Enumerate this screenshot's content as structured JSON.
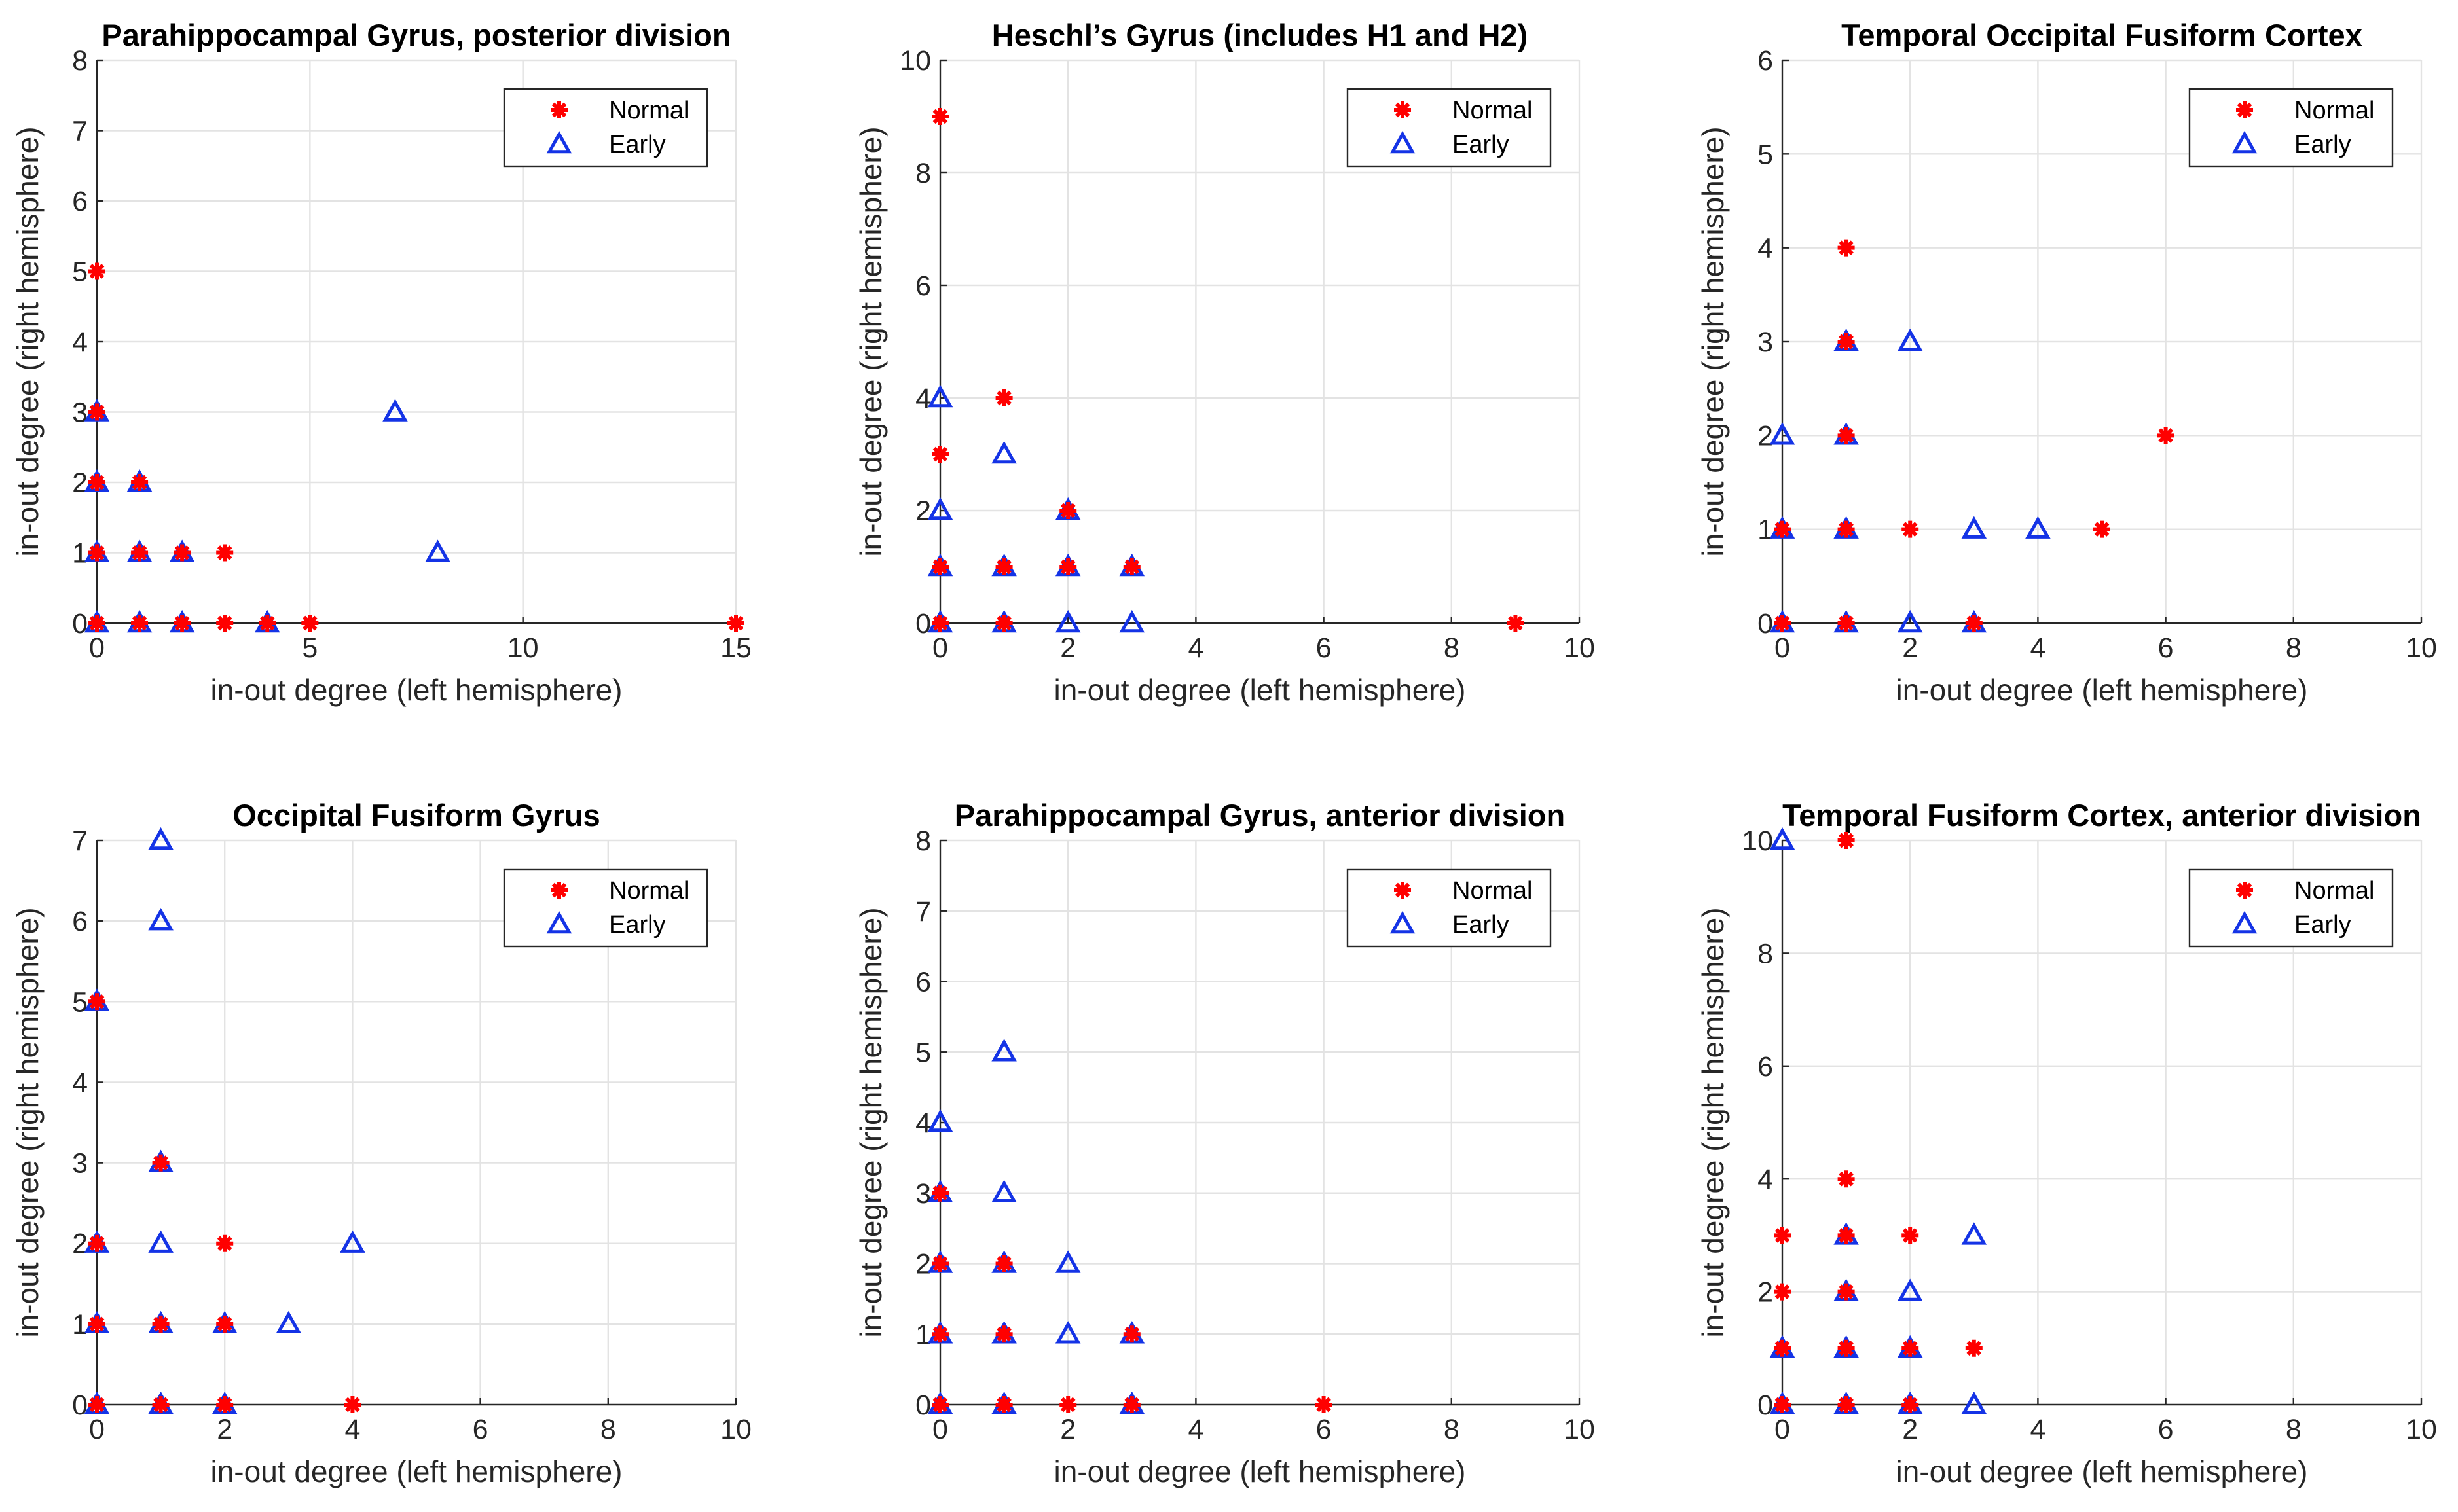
{
  "colors": {
    "normal": "#ff0000",
    "early": "#1433e6",
    "grid": "#e3e3e3",
    "axis": "#262626"
  },
  "chart_data": [
    {
      "type": "scatter",
      "title": "Parahippocampal Gyrus, posterior division",
      "xlabel": "in-out degree (left hemisphere)",
      "ylabel": "in-out degree (right hemisphere)",
      "xlim": [
        0,
        15
      ],
      "ylim": [
        0,
        8
      ],
      "xticks": [
        0,
        5,
        10,
        15
      ],
      "yticks": [
        0,
        1,
        2,
        3,
        4,
        5,
        6,
        7,
        8
      ],
      "grid": true,
      "legend": "top-right",
      "series": [
        {
          "name": "Normal",
          "marker": "asterisk",
          "points": [
            [
              0,
              5
            ],
            [
              0,
              3
            ],
            [
              0,
              2
            ],
            [
              0,
              1
            ],
            [
              0,
              0
            ],
            [
              1,
              2
            ],
            [
              1,
              1
            ],
            [
              1,
              0
            ],
            [
              2,
              1
            ],
            [
              2,
              0
            ],
            [
              3,
              1
            ],
            [
              3,
              0
            ],
            [
              4,
              0
            ],
            [
              5,
              0
            ],
            [
              15,
              0
            ]
          ]
        },
        {
          "name": "Early",
          "marker": "triangle",
          "points": [
            [
              0,
              3
            ],
            [
              0,
              2
            ],
            [
              0,
              1
            ],
            [
              0,
              0
            ],
            [
              1,
              2
            ],
            [
              1,
              1
            ],
            [
              1,
              0
            ],
            [
              2,
              1
            ],
            [
              2,
              0
            ],
            [
              4,
              0
            ],
            [
              7,
              3
            ],
            [
              8,
              1
            ]
          ]
        }
      ]
    },
    {
      "type": "scatter",
      "title": "Heschl’s Gyrus (includes H1 and H2)",
      "xlabel": "in-out degree (left hemisphere)",
      "ylabel": "in-out degree (right hemisphere)",
      "xlim": [
        0,
        10
      ],
      "ylim": [
        0,
        10
      ],
      "xticks": [
        0,
        2,
        4,
        6,
        8,
        10
      ],
      "yticks": [
        0,
        2,
        4,
        6,
        8,
        10
      ],
      "grid": true,
      "legend": "top-right",
      "series": [
        {
          "name": "Normal",
          "marker": "asterisk",
          "points": [
            [
              0,
              9
            ],
            [
              0,
              3
            ],
            [
              0,
              1
            ],
            [
              0,
              0
            ],
            [
              1,
              4
            ],
            [
              1,
              1
            ],
            [
              1,
              0
            ],
            [
              2,
              2
            ],
            [
              2,
              1
            ],
            [
              3,
              1
            ],
            [
              9,
              0
            ]
          ]
        },
        {
          "name": "Early",
          "marker": "triangle",
          "points": [
            [
              0,
              4
            ],
            [
              0,
              2
            ],
            [
              0,
              1
            ],
            [
              0,
              0
            ],
            [
              1,
              3
            ],
            [
              1,
              1
            ],
            [
              1,
              0
            ],
            [
              2,
              2
            ],
            [
              2,
              1
            ],
            [
              2,
              0
            ],
            [
              3,
              1
            ],
            [
              3,
              0
            ]
          ]
        }
      ]
    },
    {
      "type": "scatter",
      "title": "Temporal Occipital Fusiform Cortex",
      "xlabel": "in-out degree (left hemisphere)",
      "ylabel": "in-out degree (right hemisphere)",
      "xlim": [
        0,
        10
      ],
      "ylim": [
        0,
        6
      ],
      "xticks": [
        0,
        2,
        4,
        6,
        8,
        10
      ],
      "yticks": [
        0,
        1,
        2,
        3,
        4,
        5,
        6
      ],
      "grid": true,
      "legend": "top-right",
      "series": [
        {
          "name": "Normal",
          "marker": "asterisk",
          "points": [
            [
              0,
              1
            ],
            [
              0,
              0
            ],
            [
              1,
              4
            ],
            [
              1,
              3
            ],
            [
              1,
              2
            ],
            [
              1,
              1
            ],
            [
              1,
              0
            ],
            [
              2,
              1
            ],
            [
              3,
              0
            ],
            [
              5,
              1
            ],
            [
              6,
              2
            ]
          ]
        },
        {
          "name": "Early",
          "marker": "triangle",
          "points": [
            [
              0,
              2
            ],
            [
              0,
              1
            ],
            [
              0,
              0
            ],
            [
              1,
              3
            ],
            [
              1,
              2
            ],
            [
              1,
              1
            ],
            [
              1,
              0
            ],
            [
              2,
              3
            ],
            [
              2,
              0
            ],
            [
              3,
              1
            ],
            [
              3,
              0
            ],
            [
              4,
              1
            ]
          ]
        }
      ]
    },
    {
      "type": "scatter",
      "title": "Occipital Fusiform Gyrus",
      "xlabel": "in-out degree (left hemisphere)",
      "ylabel": "in-out degree (right hemisphere)",
      "xlim": [
        0,
        10
      ],
      "ylim": [
        0,
        7
      ],
      "xticks": [
        0,
        2,
        4,
        6,
        8,
        10
      ],
      "yticks": [
        0,
        1,
        2,
        3,
        4,
        5,
        6,
        7
      ],
      "grid": true,
      "legend": "top-right",
      "series": [
        {
          "name": "Normal",
          "marker": "asterisk",
          "points": [
            [
              0,
              5
            ],
            [
              0,
              2
            ],
            [
              0,
              1
            ],
            [
              0,
              0
            ],
            [
              1,
              3
            ],
            [
              1,
              1
            ],
            [
              1,
              0
            ],
            [
              2,
              2
            ],
            [
              2,
              1
            ],
            [
              2,
              0
            ],
            [
              4,
              0
            ]
          ]
        },
        {
          "name": "Early",
          "marker": "triangle",
          "points": [
            [
              0,
              5
            ],
            [
              0,
              2
            ],
            [
              0,
              1
            ],
            [
              0,
              0
            ],
            [
              1,
              7
            ],
            [
              1,
              6
            ],
            [
              1,
              3
            ],
            [
              1,
              2
            ],
            [
              1,
              1
            ],
            [
              1,
              0
            ],
            [
              2,
              1
            ],
            [
              2,
              0
            ],
            [
              3,
              1
            ],
            [
              4,
              2
            ]
          ]
        }
      ]
    },
    {
      "type": "scatter",
      "title": "Parahippocampal Gyrus, anterior division",
      "xlabel": "in-out degree (left hemisphere)",
      "ylabel": "in-out degree (right hemisphere)",
      "xlim": [
        0,
        10
      ],
      "ylim": [
        0,
        8
      ],
      "xticks": [
        0,
        2,
        4,
        6,
        8,
        10
      ],
      "yticks": [
        0,
        1,
        2,
        3,
        4,
        5,
        6,
        7,
        8
      ],
      "grid": true,
      "legend": "top-right",
      "series": [
        {
          "name": "Normal",
          "marker": "asterisk",
          "points": [
            [
              0,
              3
            ],
            [
              0,
              2
            ],
            [
              0,
              1
            ],
            [
              0,
              0
            ],
            [
              1,
              2
            ],
            [
              1,
              1
            ],
            [
              1,
              0
            ],
            [
              2,
              0
            ],
            [
              3,
              1
            ],
            [
              3,
              0
            ],
            [
              6,
              0
            ]
          ]
        },
        {
          "name": "Early",
          "marker": "triangle",
          "points": [
            [
              0,
              4
            ],
            [
              0,
              3
            ],
            [
              0,
              2
            ],
            [
              0,
              1
            ],
            [
              0,
              0
            ],
            [
              1,
              5
            ],
            [
              1,
              3
            ],
            [
              1,
              2
            ],
            [
              1,
              1
            ],
            [
              1,
              0
            ],
            [
              2,
              2
            ],
            [
              2,
              1
            ],
            [
              3,
              1
            ],
            [
              3,
              0
            ]
          ]
        }
      ]
    },
    {
      "type": "scatter",
      "title": "Temporal Fusiform Cortex, anterior division",
      "xlabel": "in-out degree (left hemisphere)",
      "ylabel": "in-out degree (right hemisphere)",
      "xlim": [
        0,
        10
      ],
      "ylim": [
        0,
        10
      ],
      "xticks": [
        0,
        2,
        4,
        6,
        8,
        10
      ],
      "yticks": [
        0,
        2,
        4,
        6,
        8,
        10
      ],
      "grid": true,
      "legend": "top-right",
      "series": [
        {
          "name": "Normal",
          "marker": "asterisk",
          "points": [
            [
              0,
              3
            ],
            [
              0,
              2
            ],
            [
              0,
              1
            ],
            [
              0,
              0
            ],
            [
              1,
              10
            ],
            [
              1,
              4
            ],
            [
              1,
              3
            ],
            [
              1,
              2
            ],
            [
              1,
              1
            ],
            [
              1,
              0
            ],
            [
              2,
              3
            ],
            [
              2,
              1
            ],
            [
              2,
              0
            ],
            [
              3,
              1
            ]
          ]
        },
        {
          "name": "Early",
          "marker": "triangle",
          "points": [
            [
              0,
              10
            ],
            [
              0,
              1
            ],
            [
              0,
              0
            ],
            [
              1,
              3
            ],
            [
              1,
              2
            ],
            [
              1,
              1
            ],
            [
              1,
              0
            ],
            [
              2,
              2
            ],
            [
              2,
              1
            ],
            [
              2,
              0
            ],
            [
              3,
              3
            ],
            [
              3,
              0
            ]
          ]
        }
      ]
    }
  ]
}
